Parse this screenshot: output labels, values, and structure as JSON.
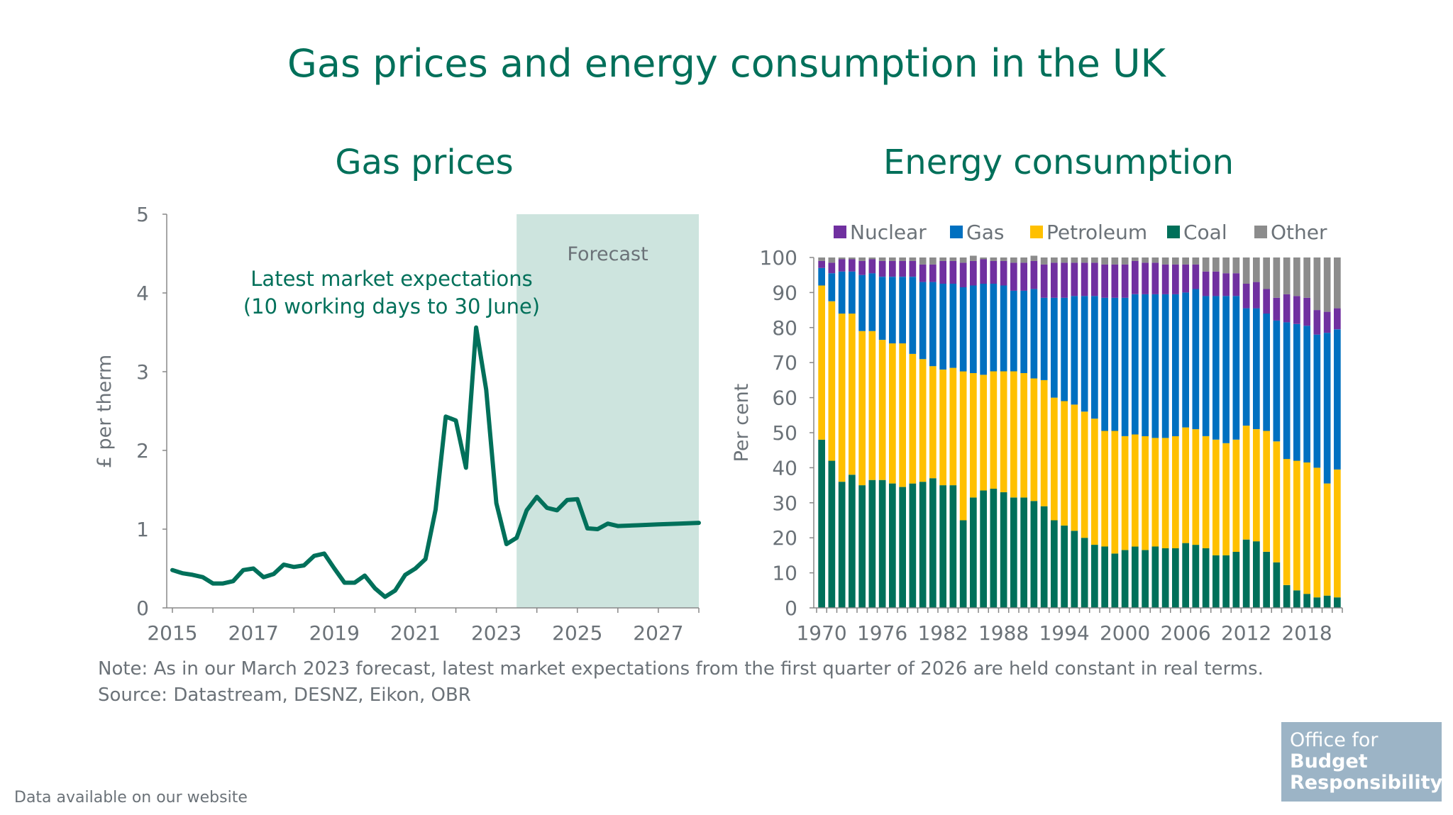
{
  "title": "Gas prices and energy consumption in the UK",
  "note": "Note: As in our March 2023 forecast, latest market expectations from the first quarter of 2026 are held constant in real terms.",
  "source": "Source: Datastream, DESNZ, Eikon, OBR",
  "footer": "Data available on our website",
  "logo": {
    "line1": "Office for",
    "line2": "Budget",
    "line3": "Responsibility"
  },
  "colors": {
    "title": "#00705a",
    "line": "#00705a",
    "forecast": "#cde4de",
    "axis": "#888888",
    "nuclear": "#7030a0",
    "gas": "#0070c0",
    "petroleum": "#ffc000",
    "coal": "#00705a",
    "other": "#8c8c8c"
  },
  "chart_data": [
    {
      "type": "line",
      "title": "Gas prices",
      "ylabel": "£ per therm",
      "ylim": [
        0,
        5
      ],
      "yticks": [
        "0",
        "1",
        "2",
        "3",
        "4",
        "5"
      ],
      "xlim": [
        2015,
        2028
      ],
      "xticks": [
        "2015",
        "2017",
        "2019",
        "2021",
        "2023",
        "2025",
        "2027"
      ],
      "forecast_label": "Forecast",
      "forecast_start": 2023.5,
      "annotation_line1": "Latest market expectations",
      "annotation_line2": "(10 working days to 30 June)",
      "series": [
        {
          "name": "Gas price",
          "x": [
            2015.0,
            2015.25,
            2015.5,
            2015.75,
            2016.0,
            2016.25,
            2016.5,
            2016.75,
            2017.0,
            2017.25,
            2017.5,
            2017.75,
            2018.0,
            2018.25,
            2018.5,
            2018.75,
            2019.0,
            2019.25,
            2019.5,
            2019.75,
            2020.0,
            2020.25,
            2020.5,
            2020.75,
            2021.0,
            2021.25,
            2021.5,
            2021.75,
            2022.0,
            2022.25,
            2022.5,
            2022.75,
            2023.0,
            2023.25,
            2023.5,
            2023.75,
            2024.0,
            2024.25,
            2024.5,
            2024.75,
            2025.0,
            2025.25,
            2025.5,
            2025.75,
            2026.0,
            2026.5,
            2027.0,
            2027.5,
            2028.0
          ],
          "values": [
            0.48,
            0.44,
            0.42,
            0.39,
            0.31,
            0.31,
            0.34,
            0.48,
            0.5,
            0.39,
            0.43,
            0.55,
            0.52,
            0.54,
            0.66,
            0.69,
            0.5,
            0.32,
            0.32,
            0.41,
            0.25,
            0.14,
            0.22,
            0.42,
            0.5,
            0.62,
            1.25,
            2.43,
            2.38,
            1.78,
            3.56,
            2.77,
            1.33,
            0.81,
            0.89,
            1.24,
            1.41,
            1.27,
            1.24,
            1.37,
            1.38,
            1.01,
            1.0,
            1.07,
            1.04,
            1.05,
            1.06,
            1.07,
            1.08
          ]
        }
      ]
    },
    {
      "type": "bar",
      "stacked": true,
      "title": "Energy consumption",
      "ylabel": "Per cent",
      "ylim": [
        0,
        100
      ],
      "yticks": [
        "0",
        "10",
        "20",
        "30",
        "40",
        "50",
        "60",
        "70",
        "80",
        "90",
        "100"
      ],
      "xticks": [
        "1970",
        "1976",
        "1982",
        "1988",
        "1994",
        "2000",
        "2006",
        "2012",
        "2018"
      ],
      "legend_position": "top",
      "categories": [
        "1970",
        "1971",
        "1972",
        "1973",
        "1974",
        "1975",
        "1976",
        "1977",
        "1978",
        "1979",
        "1980",
        "1981",
        "1982",
        "1983",
        "1984",
        "1985",
        "1986",
        "1987",
        "1988",
        "1989",
        "1990",
        "1991",
        "1992",
        "1993",
        "1994",
        "1995",
        "1996",
        "1997",
        "1998",
        "1999",
        "2000",
        "2001",
        "2002",
        "2003",
        "2004",
        "2005",
        "2006",
        "2007",
        "2008",
        "2009",
        "2010",
        "2011",
        "2012",
        "2013",
        "2014",
        "2015",
        "2016",
        "2017",
        "2018",
        "2019",
        "2020",
        "2021"
      ],
      "series": [
        {
          "name": "Coal",
          "values": [
            48,
            42,
            36,
            38,
            35,
            36.5,
            36.5,
            35.5,
            34.5,
            35.5,
            36,
            37,
            35,
            35,
            25,
            31.5,
            33.5,
            34,
            33,
            31.5,
            31.5,
            30.5,
            29,
            25,
            23.5,
            22,
            20,
            18,
            17.5,
            15.5,
            16.5,
            17.5,
            16.5,
            17.5,
            17,
            17,
            18.5,
            18,
            17,
            15,
            15,
            16,
            19.5,
            19,
            16,
            13,
            6.5,
            5,
            4,
            3,
            3.5,
            3
          ]
        },
        {
          "name": "Petroleum",
          "values": [
            44,
            45.5,
            48,
            46,
            44,
            42.5,
            40,
            40,
            41,
            37,
            35,
            32,
            33,
            33.5,
            42.5,
            35.5,
            33,
            33.5,
            34.5,
            36,
            35.5,
            35,
            36,
            35,
            35.5,
            36,
            36,
            36,
            33,
            35,
            32.5,
            32,
            32.5,
            31,
            31.5,
            32,
            33,
            33,
            32,
            33,
            32,
            32,
            32.5,
            32,
            34.5,
            34.5,
            36,
            37,
            37.5,
            37,
            32,
            36.5
          ]
        },
        {
          "name": "Gas",
          "values": [
            5,
            8,
            12,
            12,
            16,
            16.5,
            18,
            19,
            19,
            22,
            22,
            24,
            24.5,
            24,
            24,
            25,
            26,
            25,
            24.5,
            23,
            23.5,
            25.5,
            23.5,
            28.5,
            29.5,
            31,
            33,
            35,
            38,
            38,
            39.5,
            40,
            40.5,
            41,
            41,
            40.5,
            38.5,
            40,
            40,
            41,
            42,
            41,
            33.5,
            34.5,
            33.5,
            34.5,
            39,
            39,
            39,
            38,
            43,
            40
          ]
        },
        {
          "name": "Nuclear",
          "values": [
            2,
            3,
            3.5,
            3.5,
            4,
            4,
            4.5,
            4.5,
            4.5,
            4.5,
            5,
            5,
            6.5,
            6.5,
            7,
            7,
            7,
            6.5,
            7,
            8,
            8,
            8,
            9.5,
            10,
            10,
            9.5,
            9.5,
            9.5,
            9.5,
            9.5,
            9.5,
            9.5,
            9,
            9,
            8.5,
            8.5,
            8,
            7,
            7,
            7,
            6.5,
            6.5,
            7,
            7.5,
            7,
            6.5,
            8,
            8,
            8,
            7,
            6,
            6
          ]
        },
        {
          "name": "Other",
          "values": [
            1,
            1.5,
            0.5,
            0.5,
            1,
            0.5,
            1,
            1,
            1,
            1,
            2,
            2,
            1,
            1,
            1.5,
            1.5,
            0.5,
            1,
            1,
            1.5,
            1.5,
            1.5,
            2,
            1.5,
            1.5,
            1.5,
            1.5,
            1.5,
            2,
            2,
            2,
            1,
            1.5,
            1.5,
            2,
            2,
            2,
            2,
            4,
            4,
            4.5,
            4.5,
            7.5,
            7,
            9,
            11.5,
            10.5,
            11,
            11.5,
            15,
            15.5,
            14.5
          ]
        }
      ]
    }
  ]
}
